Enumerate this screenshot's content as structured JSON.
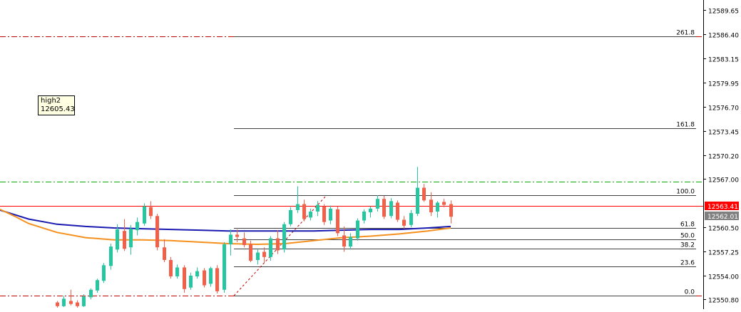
{
  "price_axis": {
    "ticks": [
      "12589.65",
      "12586.40",
      "12583.15",
      "12579.95",
      "12576.70",
      "12573.45",
      "12570.20",
      "12567.00",
      "12560.50",
      "12557.25",
      "12554.00",
      "12550.80"
    ],
    "tick_values": [
      12589.65,
      12586.4,
      12583.15,
      12579.95,
      12576.7,
      12573.45,
      12570.2,
      12567.0,
      12560.5,
      12557.25,
      12554.0,
      12550.8
    ]
  },
  "price_labels": {
    "bid": {
      "text": "12563.41",
      "value": 12563.41,
      "color": "#ff0000"
    },
    "current": {
      "text": "12562.01",
      "value": 12562.01,
      "color": "#808080"
    }
  },
  "fibonacci": {
    "levels": [
      {
        "label": "261.8",
        "value": 12586.1
      },
      {
        "label": "161.8",
        "value": 12573.8
      },
      {
        "label": "100.0",
        "value": 12564.8
      },
      {
        "label": "61.8",
        "value": 12560.4
      },
      {
        "label": "50.0",
        "value": 12558.9
      },
      {
        "label": "38.2",
        "value": 12557.6
      },
      {
        "label": "23.6",
        "value": 12555.2
      },
      {
        "label": "0.0",
        "value": 12551.3
      }
    ],
    "color": "#404040"
  },
  "horizontal_lines": [
    {
      "name": "resistance-line",
      "value": 12586.1,
      "color": "#c00000",
      "style": "dash-dot"
    },
    {
      "name": "green-level-line",
      "value": 12566.6,
      "color": "#00aa00",
      "style": "dash-dot"
    },
    {
      "name": "support-line",
      "value": 12551.3,
      "color": "#c00000",
      "style": "dash-dot"
    },
    {
      "name": "bid-line",
      "value": 12563.41,
      "color": "#ff0000",
      "style": "solid"
    }
  ],
  "tooltip": {
    "name": "high2",
    "value": "12605.43"
  },
  "chart_data": {
    "type": "candlestick",
    "y_range": [
      12549.5,
      12591.0
    ],
    "up_color": "#26c6a0",
    "down_color": "#f2604a",
    "candles": [
      [
        12550.4,
        12550.6,
        12549.7,
        12549.9
      ],
      [
        12549.9,
        12551.3,
        12549.8,
        12550.9
      ],
      [
        12550.6,
        12552.1,
        12550.0,
        12550.2
      ],
      [
        12550.4,
        12550.7,
        12549.7,
        12549.9
      ],
      [
        12549.9,
        12551.5,
        12549.8,
        12551.2
      ],
      [
        12551.1,
        12552.3,
        12550.8,
        12552.1
      ],
      [
        12552.0,
        12553.6,
        12551.7,
        12553.4
      ],
      [
        12553.3,
        12555.7,
        12553.0,
        12555.4
      ],
      [
        12555.3,
        12558.3,
        12554.8,
        12557.9
      ],
      [
        12557.5,
        12560.9,
        12557.1,
        12560.2
      ],
      [
        12560.0,
        12561.6,
        12557.3,
        12557.6
      ],
      [
        12557.8,
        12560.8,
        12556.8,
        12560.3
      ],
      [
        12560.1,
        12561.8,
        12559.4,
        12561.2
      ],
      [
        12561.0,
        12563.7,
        12560.7,
        12563.3
      ],
      [
        12563.2,
        12564.0,
        12561.6,
        12562.0
      ],
      [
        12562.0,
        12562.3,
        12557.4,
        12557.8
      ],
      [
        12557.8,
        12558.9,
        12555.8,
        12556.1
      ],
      [
        12556.1,
        12556.5,
        12553.6,
        12553.9
      ],
      [
        12553.9,
        12555.5,
        12553.6,
        12555.1
      ],
      [
        12555.1,
        12555.4,
        12551.7,
        12552.2
      ],
      [
        12552.4,
        12554.4,
        12552.1,
        12554.0
      ],
      [
        12553.9,
        12555.1,
        12553.6,
        12554.6
      ],
      [
        12554.7,
        12555.0,
        12552.4,
        12552.7
      ],
      [
        12552.9,
        12555.2,
        12552.5,
        12555.0
      ],
      [
        12555.0,
        12555.4,
        12551.6,
        12551.9
      ],
      [
        12552.1,
        12558.5,
        12551.7,
        12558.2
      ],
      [
        12558.2,
        12560.2,
        12556.7,
        12559.5
      ],
      [
        12559.5,
        12560.2,
        12558.5,
        12559.2
      ],
      [
        12559.0,
        12559.8,
        12557.8,
        12558.1
      ],
      [
        12558.2,
        12558.7,
        12555.8,
        12556.0
      ],
      [
        12556.1,
        12557.5,
        12555.5,
        12557.1
      ],
      [
        12557.2,
        12557.8,
        12555.7,
        12556.5
      ],
      [
        12556.5,
        12559.3,
        12556.0,
        12559.0
      ],
      [
        12559.0,
        12560.1,
        12556.9,
        12557.4
      ],
      [
        12557.5,
        12561.2,
        12557.1,
        12560.9
      ],
      [
        12560.9,
        12563.2,
        12560.6,
        12562.8
      ],
      [
        12562.8,
        12566.0,
        12562.4,
        12563.6
      ],
      [
        12563.6,
        12564.2,
        12561.3,
        12561.6
      ],
      [
        12561.8,
        12563.0,
        12561.4,
        12562.6
      ],
      [
        12562.6,
        12564.0,
        12562.0,
        12563.5
      ],
      [
        12563.3,
        12563.6,
        12560.8,
        12561.2
      ],
      [
        12561.4,
        12563.4,
        12560.9,
        12563.0
      ],
      [
        12562.9,
        12563.3,
        12559.3,
        12559.7
      ],
      [
        12559.4,
        12560.6,
        12557.2,
        12557.9
      ],
      [
        12557.9,
        12559.7,
        12557.5,
        12559.2
      ],
      [
        12559.0,
        12561.7,
        12558.7,
        12561.4
      ],
      [
        12561.4,
        12562.9,
        12561.0,
        12562.6
      ],
      [
        12562.5,
        12563.3,
        12561.8,
        12563.0
      ],
      [
        12563.0,
        12564.8,
        12562.6,
        12564.3
      ],
      [
        12564.3,
        12564.7,
        12561.6,
        12561.9
      ],
      [
        12562.0,
        12564.4,
        12561.7,
        12564.0
      ],
      [
        12563.8,
        12564.1,
        12561.2,
        12561.5
      ],
      [
        12561.5,
        12562.0,
        12560.3,
        12560.7
      ],
      [
        12560.8,
        12562.8,
        12560.5,
        12562.4
      ],
      [
        12562.3,
        12568.6,
        12562.0,
        12565.8
      ],
      [
        12565.8,
        12566.3,
        12563.9,
        12564.1
      ],
      [
        12564.2,
        12565.2,
        12562.0,
        12562.5
      ],
      [
        12562.6,
        12564.0,
        12561.8,
        12563.8
      ],
      [
        12563.9,
        12564.3,
        12563.2,
        12563.5
      ],
      [
        12563.6,
        12564.1,
        12561.0,
        12561.9
      ]
    ],
    "moving_averages": [
      {
        "name": "blue-ma",
        "color": "#1a1ab0",
        "points": [
          [
            0,
            12562.8
          ],
          [
            20,
            12562.2
          ],
          [
            40,
            12561.6
          ],
          [
            80,
            12560.9
          ],
          [
            120,
            12560.6
          ],
          [
            160,
            12560.4
          ],
          [
            200,
            12560.3
          ],
          [
            240,
            12560.2
          ],
          [
            280,
            12560.1
          ],
          [
            320,
            12560.0
          ],
          [
            360,
            12560.0
          ],
          [
            400,
            12560.0
          ],
          [
            440,
            12560.0
          ],
          [
            480,
            12560.1
          ],
          [
            520,
            12560.2
          ],
          [
            560,
            12560.2
          ],
          [
            600,
            12560.4
          ],
          [
            632,
            12560.6
          ]
        ]
      },
      {
        "name": "orange-ma",
        "color": "#f5901e",
        "points": [
          [
            0,
            12562.9
          ],
          [
            20,
            12562.0
          ],
          [
            40,
            12561.0
          ],
          [
            80,
            12559.8
          ],
          [
            120,
            12559.1
          ],
          [
            160,
            12558.8
          ],
          [
            200,
            12558.8
          ],
          [
            240,
            12558.7
          ],
          [
            280,
            12558.5
          ],
          [
            320,
            12558.3
          ],
          [
            360,
            12558.2
          ],
          [
            400,
            12558.3
          ],
          [
            440,
            12558.7
          ],
          [
            480,
            12559.1
          ],
          [
            520,
            12559.3
          ],
          [
            560,
            12559.6
          ],
          [
            600,
            12560.0
          ],
          [
            632,
            12560.4
          ]
        ]
      }
    ]
  }
}
